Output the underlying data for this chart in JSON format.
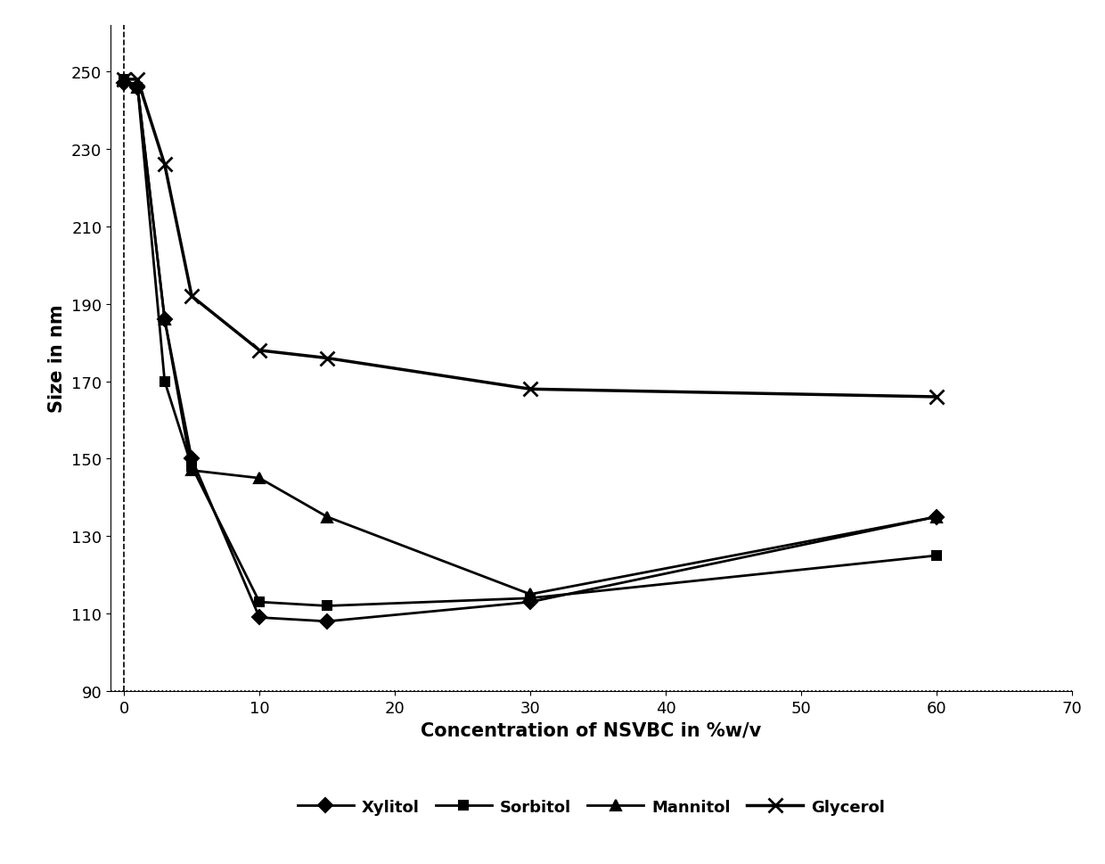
{
  "series": {
    "Xylitol": {
      "x": [
        0,
        1,
        3,
        5,
        10,
        15,
        30,
        60
      ],
      "y": [
        247,
        246,
        186,
        150,
        109,
        108,
        113,
        135
      ],
      "marker": "D",
      "color": "#000000",
      "linestyle": "-",
      "linewidth": 2.0,
      "markersize": 8,
      "zorder": 4
    },
    "Sorbitol": {
      "x": [
        0,
        1,
        3,
        5,
        10,
        15,
        30,
        60
      ],
      "y": [
        248,
        246,
        170,
        148,
        113,
        112,
        114,
        125
      ],
      "marker": "s",
      "color": "#000000",
      "linestyle": "-",
      "linewidth": 2.0,
      "markersize": 7,
      "zorder": 3
    },
    "Mannitol": {
      "x": [
        0,
        1,
        3,
        5,
        10,
        15,
        30,
        60
      ],
      "y": [
        248,
        246,
        186,
        147,
        145,
        135,
        115,
        135
      ],
      "marker": "^",
      "color": "#000000",
      "linestyle": "-",
      "linewidth": 2.0,
      "markersize": 8,
      "zorder": 2
    },
    "Glycerol": {
      "x": [
        0,
        1,
        3,
        5,
        10,
        15,
        30,
        60
      ],
      "y": [
        248,
        248,
        226,
        192,
        178,
        176,
        168,
        166
      ],
      "marker": "x",
      "color": "#000000",
      "linestyle": "-",
      "linewidth": 2.5,
      "markersize": 12,
      "zorder": 1
    }
  },
  "xlabel": "Concentration of NSVBC in %w/v",
  "ylabel": "Size in nm",
  "xlim": [
    -1,
    70
  ],
  "ylim": [
    90,
    262
  ],
  "yticks": [
    90,
    110,
    130,
    150,
    170,
    190,
    210,
    230,
    250
  ],
  "xticks": [
    0,
    10,
    20,
    30,
    40,
    50,
    60,
    70
  ],
  "background_color": "#ffffff",
  "vline_x": 0,
  "hline_y": 90,
  "axis_label_fontsize": 15,
  "tick_fontsize": 13,
  "legend_fontsize": 13
}
